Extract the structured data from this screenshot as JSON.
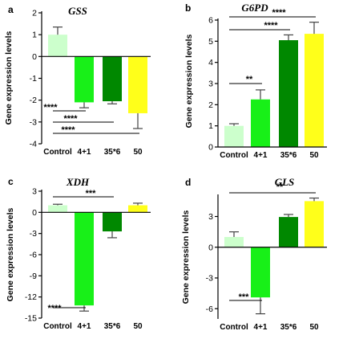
{
  "colors": {
    "control": "#ccffcc",
    "group_4p1": "#18f018",
    "group_35x6": "#008800",
    "group_50": "#ffff1a",
    "error_bar": "#444444"
  },
  "chart_data": [
    {
      "panel": "a",
      "title": "GSS",
      "type": "bar",
      "ylabel": "Gene expression levels",
      "xlabel": "",
      "categories": [
        "Control",
        "4+1",
        "35*6",
        "50"
      ],
      "values": [
        1.0,
        -2.1,
        -2.05,
        -2.6
      ],
      "errors": [
        0.35,
        0.25,
        0.12,
        0.7
      ],
      "ylim": [
        -4,
        2
      ],
      "yticks": [
        -4,
        -3,
        -2,
        -1,
        0,
        1,
        2
      ],
      "ytick_labels": [
        "-4",
        "-3",
        "-2",
        "-1",
        "0",
        "1",
        "2"
      ],
      "grid": false,
      "significance": [
        {
          "from": 0,
          "to": 1,
          "label": "****"
        },
        {
          "from": 0,
          "to": 2,
          "label": "****"
        },
        {
          "from": 0,
          "to": 3,
          "label": "****"
        }
      ]
    },
    {
      "panel": "b",
      "title": "G6PD",
      "type": "bar",
      "ylabel": "Gene expression levels",
      "xlabel": "",
      "categories": [
        "Control",
        "4+1",
        "35*6",
        "50"
      ],
      "values": [
        1.0,
        2.25,
        5.05,
        5.35
      ],
      "errors": [
        0.1,
        0.45,
        0.25,
        0.55
      ],
      "ylim": [
        0,
        6
      ],
      "yticks": [
        0,
        1,
        2,
        3,
        4,
        5,
        6
      ],
      "ytick_labels": [
        "0",
        "1",
        "2",
        "3",
        "4",
        "5",
        "6"
      ],
      "grid": false,
      "significance": [
        {
          "from": 0,
          "to": 1,
          "label": "**"
        },
        {
          "from": 0,
          "to": 2,
          "label": "****"
        },
        {
          "from": 0,
          "to": 3,
          "label": "****"
        }
      ]
    },
    {
      "panel": "c",
      "title": "XDH",
      "type": "bar",
      "ylabel": "Gene expression levels",
      "xlabel": "",
      "categories": [
        "Control",
        "4+1",
        "35*6",
        "50"
      ],
      "values": [
        1.0,
        -13.2,
        -2.7,
        1.0
      ],
      "errors": [
        0.15,
        0.8,
        0.9,
        0.3
      ],
      "ylim": [
        -15,
        3
      ],
      "yticks": [
        -15,
        -12,
        -9,
        -6,
        -3,
        0,
        3
      ],
      "ytick_labels": [
        "-15",
        "-12",
        "-9",
        "-6",
        "-3",
        "0",
        "3"
      ],
      "grid": false,
      "significance": [
        {
          "from": 0,
          "to": 1,
          "label": "****"
        },
        {
          "from": 0,
          "to": 2,
          "label": "***"
        }
      ]
    },
    {
      "panel": "d",
      "title": "GLS",
      "type": "bar",
      "ylabel": "Gene expression levels",
      "xlabel": "",
      "categories": [
        "Control",
        "4+1",
        "35*6",
        "50"
      ],
      "values": [
        1.0,
        -4.9,
        2.95,
        4.5
      ],
      "errors": [
        0.5,
        1.6,
        0.25,
        0.3
      ],
      "ylim": [
        -7,
        5
      ],
      "yticks": [
        -6,
        -3,
        0,
        3
      ],
      "ytick_labels": [
        "-6",
        "-3",
        "0",
        "3"
      ],
      "grid": false,
      "significance": [
        {
          "from": 0,
          "to": 1,
          "label": "***"
        },
        {
          "from": 0,
          "to": 3,
          "label": "**"
        }
      ]
    }
  ]
}
